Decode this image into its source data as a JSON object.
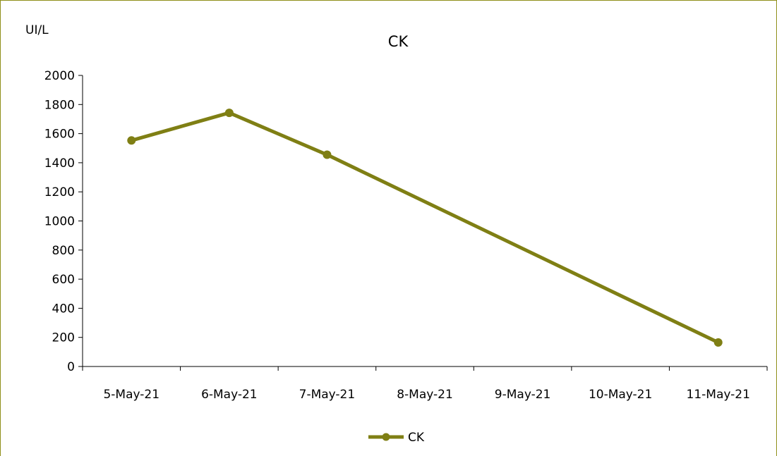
{
  "chart_data": {
    "type": "line",
    "title": "CK",
    "ylabel": "UI/L",
    "xlabel": "",
    "categories": [
      "5-May-21",
      "6-May-21",
      "7-May-21",
      "8-May-21",
      "9-May-21",
      "10-May-21",
      "11-May-21"
    ],
    "ylim": [
      0,
      2000
    ],
    "yticks": [
      "0",
      "200",
      "400",
      "600",
      "800",
      "1000",
      "1200",
      "1400",
      "1600",
      "1800",
      "2000"
    ],
    "series": [
      {
        "name": "CK",
        "color": "#7f7f14",
        "points": [
          {
            "x": "5-May-21",
            "y": 1553
          },
          {
            "x": "6-May-21",
            "y": 1743
          },
          {
            "x": "7-May-21",
            "y": 1455
          },
          {
            "x": "11-May-21",
            "y": 165
          }
        ]
      }
    ],
    "grid": false,
    "legend": "bottom-center"
  }
}
